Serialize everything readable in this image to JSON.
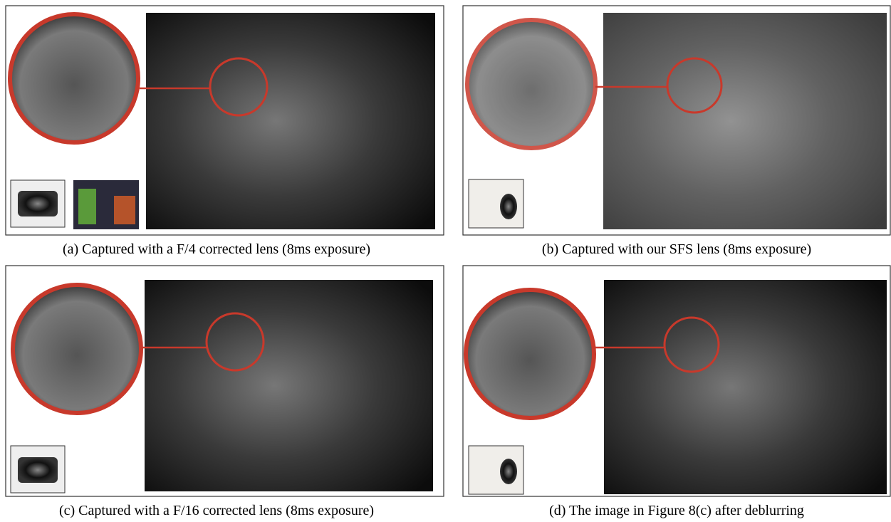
{
  "panels": [
    {
      "caption": "(a) Captured with a F/4 corrected lens (8ms exposure)"
    },
    {
      "caption": "(b) Captured with our SFS lens (8ms exposure)"
    },
    {
      "caption": "(c) Captured with a F/16 corrected lens (8ms exposure)"
    },
    {
      "caption": "(d) The image in Figure 8(c) after deblurring"
    }
  ]
}
